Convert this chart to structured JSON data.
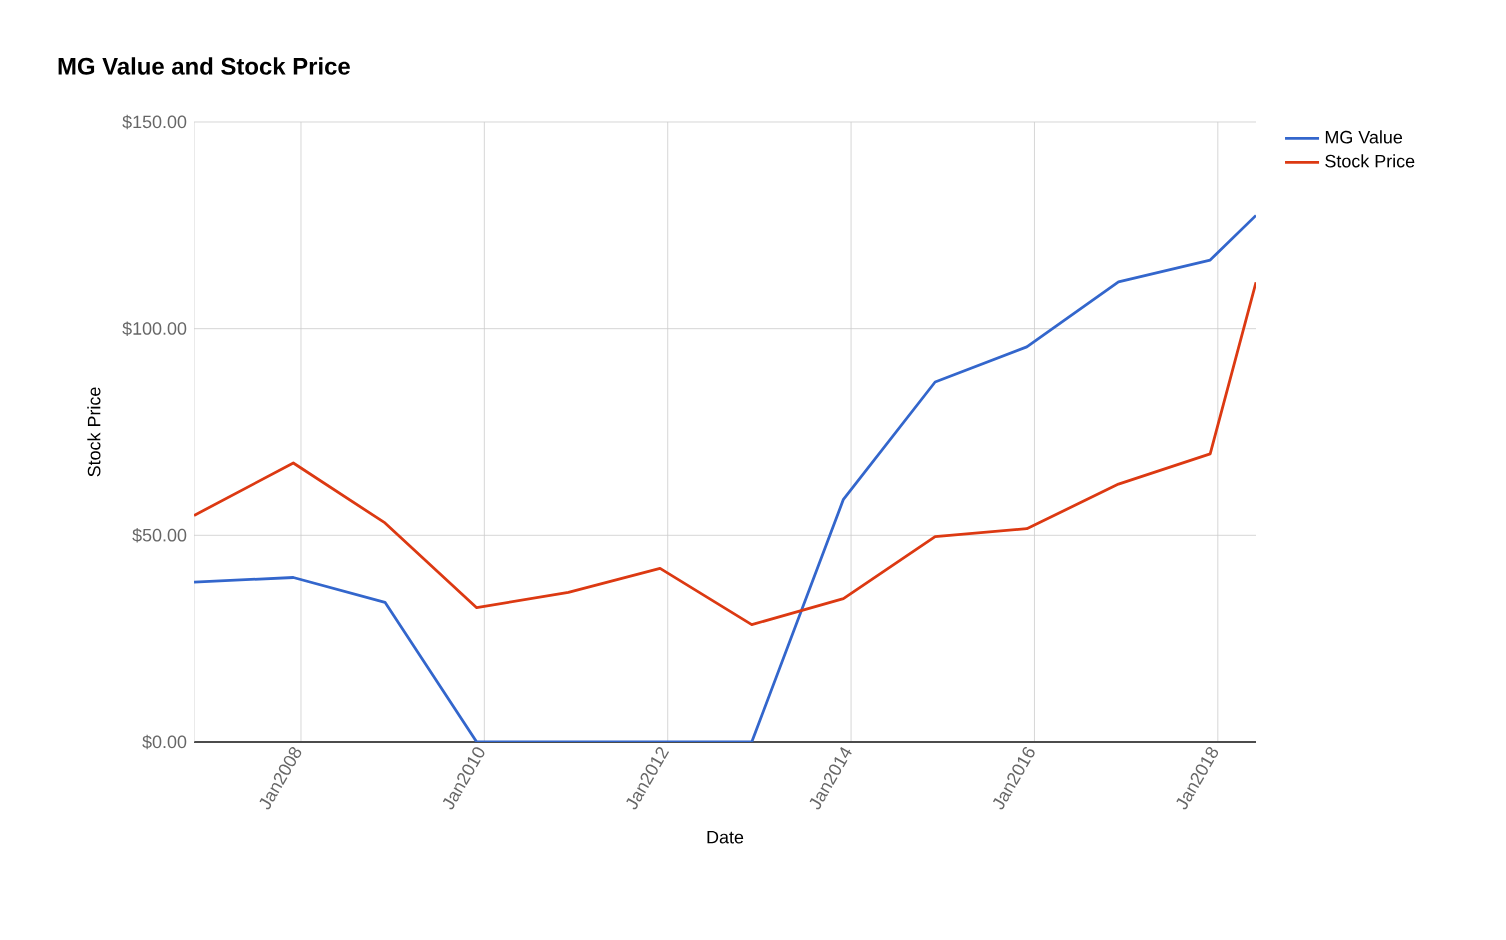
{
  "chart_data": {
    "type": "line",
    "title": "MG Value and Stock Price",
    "xlabel": "Date",
    "ylabel": "Stock Price",
    "x": [
      "2006-11",
      "2007-12",
      "2008-12",
      "2009-12",
      "2010-12",
      "2011-12",
      "2012-12",
      "2013-12",
      "2014-12",
      "2015-12",
      "2016-12",
      "2017-12",
      "2018-06"
    ],
    "series": [
      {
        "name": "MG Value",
        "color": "#3366cc",
        "values": [
          38.7,
          39.8,
          33.8,
          0,
          0,
          0,
          0,
          58.7,
          87.1,
          95.6,
          111.3,
          116.6,
          127.4
        ]
      },
      {
        "name": "Stock Price",
        "color": "#dc3912",
        "values": [
          54.8,
          67.5,
          53,
          32.5,
          36.2,
          42,
          28.4,
          34.7,
          49.7,
          51.6,
          62.4,
          69.7,
          111.2
        ]
      }
    ],
    "xlim": [
      "2006-11",
      "2018-06"
    ],
    "xticks": [
      {
        "value": "2008-01",
        "label": "Jan2008"
      },
      {
        "value": "2010-01",
        "label": "Jan2010"
      },
      {
        "value": "2012-01",
        "label": "Jan2012"
      },
      {
        "value": "2014-01",
        "label": "Jan2014"
      },
      {
        "value": "2016-01",
        "label": "Jan2016"
      },
      {
        "value": "2018-01",
        "label": "Jan2018"
      }
    ],
    "ylim": [
      0,
      150
    ],
    "yticks": [
      {
        "value": 0,
        "label": "$0.00"
      },
      {
        "value": 50,
        "label": "$50.00"
      },
      {
        "value": 100,
        "label": "$100.00"
      },
      {
        "value": 150,
        "label": "$150.00"
      }
    ],
    "grid": true,
    "legend": "top right"
  }
}
